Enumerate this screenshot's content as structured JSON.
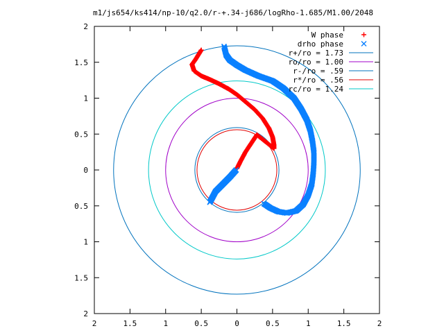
{
  "chart_data": {
    "type": "scatter",
    "title": "m1/js654/ks414/np-10/q2.0/r-+.34-j686/logRho-1.685/M1.00/2048",
    "xlim": [
      -2,
      2
    ],
    "ylim": [
      -2,
      2
    ],
    "x_tick_values": [
      -2,
      -1.5,
      -1,
      -0.5,
      0,
      0.5,
      1,
      1.5,
      2
    ],
    "x_tick_labels": [
      "2",
      "1.5",
      "1",
      "0.5",
      "0",
      "0.5",
      "1",
      "1.5",
      "2"
    ],
    "y_tick_values": [
      2,
      1.5,
      1,
      0.5,
      0,
      -0.5,
      -1,
      -1.5,
      -2
    ],
    "y_tick_labels": [
      "2",
      "1.5",
      "1",
      "0.5",
      "0",
      "0.5",
      "1",
      "1.5",
      "2"
    ],
    "grid": false,
    "legend_position": "top-right",
    "circles": [
      {
        "name": "r+/ro = 1.73",
        "radius": 1.73,
        "color": "#0072bd"
      },
      {
        "name": "ro/ro = 1.00",
        "radius": 1.0,
        "color": "#a000c8"
      },
      {
        "name": "r-/ro = .59",
        "radius": 0.59,
        "color": "#0072bd"
      },
      {
        "name": "r*/ro = .56",
        "radius": 0.56,
        "color": "#e00000"
      },
      {
        "name": "rc/ro = 1.24",
        "radius": 1.24,
        "color": "#00c8c8"
      }
    ],
    "series": [
      {
        "name": "W phase",
        "marker": "+",
        "color": "#ff0000",
        "points": [
          [
            -0.5,
            1.67
          ],
          [
            -0.58,
            1.54
          ],
          [
            -0.63,
            1.47
          ],
          [
            -0.6,
            1.38
          ],
          [
            -0.5,
            1.31
          ],
          [
            -0.38,
            1.26
          ],
          [
            -0.25,
            1.2
          ],
          [
            -0.12,
            1.13
          ],
          [
            0.0,
            1.05
          ],
          [
            0.12,
            0.95
          ],
          [
            0.25,
            0.84
          ],
          [
            0.36,
            0.72
          ],
          [
            0.45,
            0.58
          ],
          [
            0.5,
            0.46
          ],
          [
            0.52,
            0.35
          ],
          [
            0.52,
            0.3
          ],
          [
            0.28,
            0.49
          ],
          [
            0.2,
            0.37
          ],
          [
            0.12,
            0.25
          ],
          [
            0.05,
            0.12
          ],
          [
            0.0,
            0.02
          ]
        ]
      },
      {
        "name": "drho phase",
        "marker": "x",
        "color": "#0a80ff",
        "points": [
          [
            -0.18,
            1.72
          ],
          [
            -0.15,
            1.6
          ],
          [
            -0.1,
            1.53
          ],
          [
            0.0,
            1.46
          ],
          [
            0.12,
            1.39
          ],
          [
            0.3,
            1.31
          ],
          [
            0.5,
            1.24
          ],
          [
            0.65,
            1.14
          ],
          [
            0.8,
            1.0
          ],
          [
            0.9,
            0.85
          ],
          [
            0.98,
            0.7
          ],
          [
            1.03,
            0.55
          ],
          [
            1.06,
            0.4
          ],
          [
            1.08,
            0.25
          ],
          [
            1.08,
            0.1
          ],
          [
            1.07,
            -0.05
          ],
          [
            1.05,
            -0.2
          ],
          [
            1.0,
            -0.35
          ],
          [
            0.93,
            -0.48
          ],
          [
            0.83,
            -0.57
          ],
          [
            0.7,
            -0.6
          ],
          [
            0.58,
            -0.58
          ],
          [
            0.47,
            -0.53
          ],
          [
            0.38,
            -0.47
          ],
          [
            -0.01,
            0.0
          ],
          [
            -0.1,
            -0.1
          ],
          [
            -0.2,
            -0.2
          ],
          [
            -0.3,
            -0.3
          ],
          [
            -0.38,
            -0.45
          ]
        ]
      }
    ]
  }
}
